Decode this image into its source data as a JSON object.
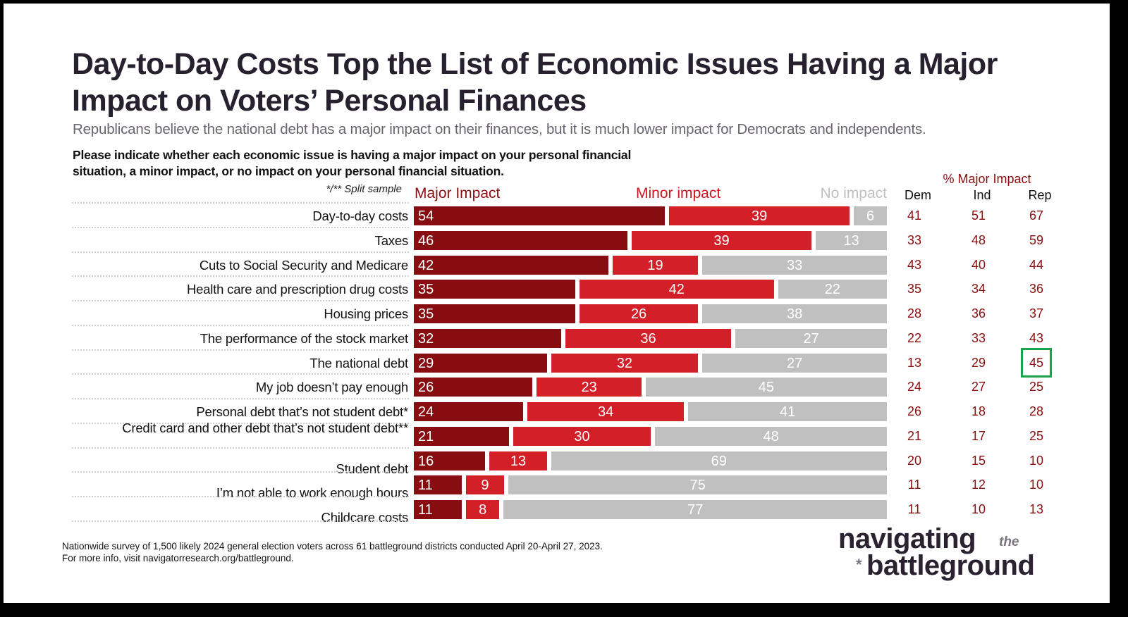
{
  "header": {
    "title": "Day-to-Day Costs Top the List of Economic Issues Having a Major Impact on Voters’ Personal Finances",
    "subtitle": "Republicans believe the national debt has a major impact on their finances, but it is much lower impact for Democrats and independents.",
    "question": "Please indicate whether each economic issue is having a major impact on your personal financial situation, a minor impact, or no impact on your personal financial situation.",
    "split_note": "*/** Split sample"
  },
  "colors": {
    "major": "#870d10",
    "minor": "#d21f28",
    "none": "#c0c0c0",
    "party_values": "#8b0e0f",
    "highlight": "#1aa34a"
  },
  "chart_data": {
    "type": "bar",
    "orientation": "horizontal-stacked",
    "title": "Day-to-Day Costs Top the List of Economic Issues Having a Major Impact on Voters’ Personal Finances",
    "xlabel": "",
    "ylabel": "",
    "xlim": [
      0,
      100
    ],
    "legend": [
      "Major Impact",
      "Minor impact",
      "No impact"
    ],
    "legend_placement": "top",
    "categories": [
      "Day-to-day costs",
      "Taxes",
      "Cuts to Social Security and Medicare",
      "Health care and prescription drug costs",
      "Housing prices",
      "The performance of the stock market",
      "The national debt",
      "My job doesn’t pay enough",
      "Personal debt that’s not student debt*",
      "Credit card and other debt that’s not student debt**",
      "Student debt",
      "I’m not able to work enough hours",
      "Childcare costs"
    ],
    "series": [
      {
        "name": "Major Impact",
        "values": [
          54,
          46,
          42,
          35,
          35,
          32,
          29,
          26,
          24,
          21,
          16,
          11,
          11
        ]
      },
      {
        "name": "Minor impact",
        "values": [
          39,
          39,
          19,
          42,
          26,
          36,
          32,
          23,
          34,
          30,
          13,
          9,
          8
        ]
      },
      {
        "name": "No impact",
        "values": [
          6,
          13,
          33,
          22,
          38,
          27,
          27,
          45,
          41,
          48,
          69,
          75,
          77
        ]
      }
    ],
    "party_table": {
      "title": "% Major Impact",
      "columns": [
        "Dem",
        "Ind",
        "Rep"
      ],
      "values": [
        [
          41,
          51,
          67
        ],
        [
          33,
          48,
          59
        ],
        [
          43,
          40,
          44
        ],
        [
          35,
          34,
          36
        ],
        [
          28,
          36,
          37
        ],
        [
          22,
          33,
          43
        ],
        [
          13,
          29,
          45
        ],
        [
          24,
          27,
          25
        ],
        [
          26,
          18,
          28
        ],
        [
          21,
          17,
          25
        ],
        [
          20,
          15,
          10
        ],
        [
          11,
          12,
          10
        ],
        [
          11,
          10,
          13
        ]
      ],
      "highlighted_cell": {
        "row": 6,
        "column": "Rep",
        "value": 45
      }
    }
  },
  "footer": {
    "note_line1": "Nationwide survey of 1,500 likely 2024 general election voters across 61 battleground districts conducted April 20-April 27, 2023.",
    "note_line2": "For more info, visit navigatorresearch.org/battleground.",
    "logo_word1": "navigating",
    "logo_the": "the",
    "logo_star": "*",
    "logo_word2": "battleground"
  }
}
